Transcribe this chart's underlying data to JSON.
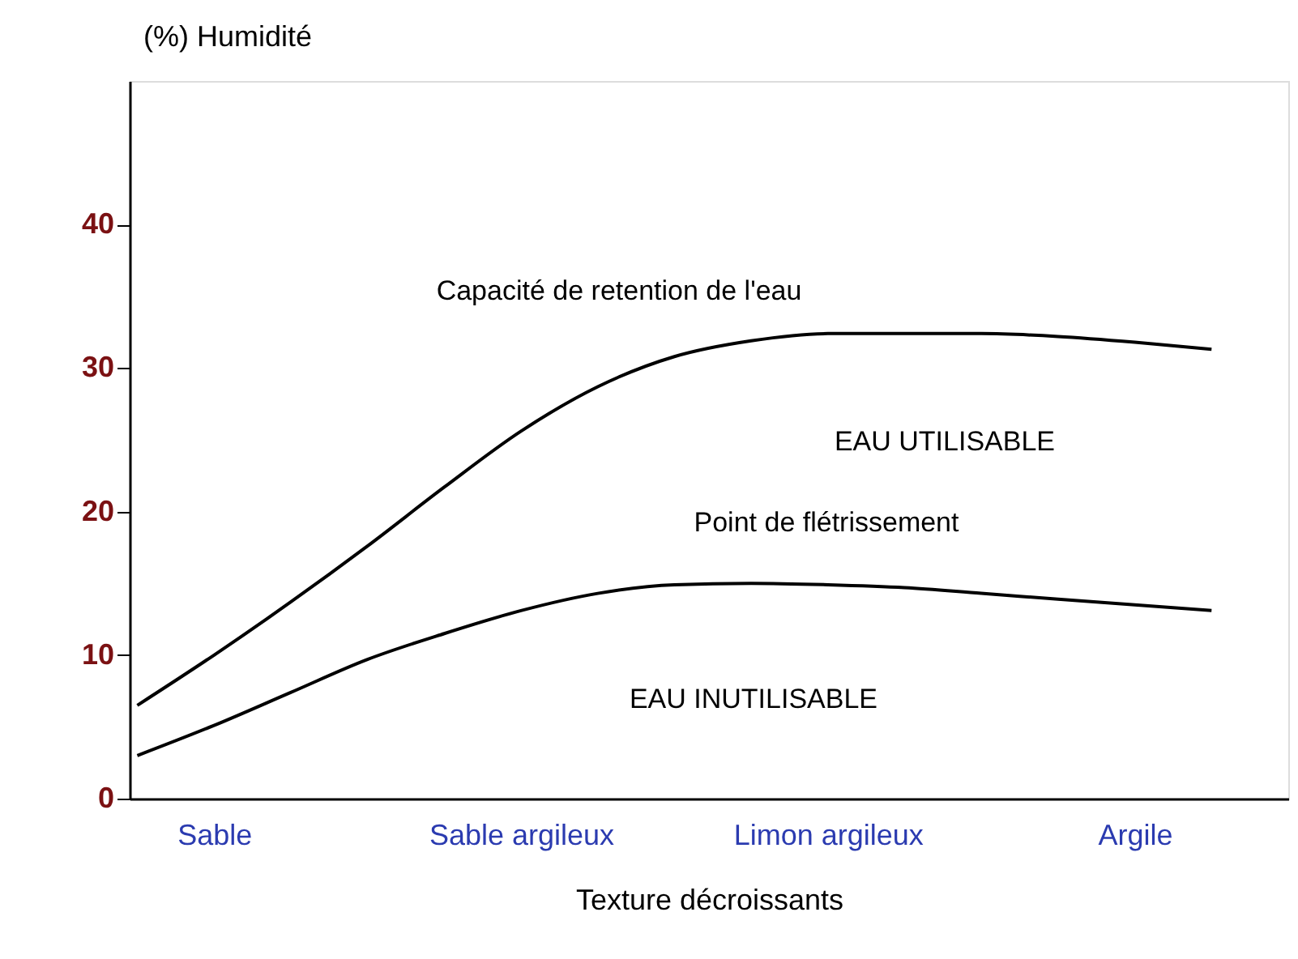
{
  "chart_data": {
    "type": "line",
    "xlabel": "Texture décroissants",
    "ylabel": "(%) Humidité",
    "categories": [
      null,
      "Sable",
      null,
      null,
      null,
      "Sable argileux",
      null,
      null,
      null,
      "Limon argileux",
      null,
      null,
      null,
      "Argile",
      null
    ],
    "series": [
      {
        "color": "#000000",
        "values": [
          6.5,
          10.0,
          13.7,
          17.6,
          21.7,
          25.6,
          28.7,
          30.8,
          31.9,
          32.4,
          32.4,
          32.4,
          32.2,
          31.8,
          31.3
        ]
      },
      {
        "color": "#000000",
        "values": [
          3.0,
          5.1,
          7.4,
          9.7,
          11.5,
          13.1,
          14.3,
          14.9,
          15.0,
          14.9,
          14.7,
          14.3,
          13.9,
          13.5,
          13.1
        ]
      }
    ],
    "ylim": [
      0,
      50
    ],
    "yticks": [
      0,
      10,
      20,
      30,
      40
    ],
    "grid": false,
    "marker": "none",
    "line_style": "solid",
    "annotations": [
      "Capacité de retention de l'eau",
      "EAU  UTILISABLE",
      "Point de flétrissement",
      "EAU INUTILISABLE"
    ]
  }
}
